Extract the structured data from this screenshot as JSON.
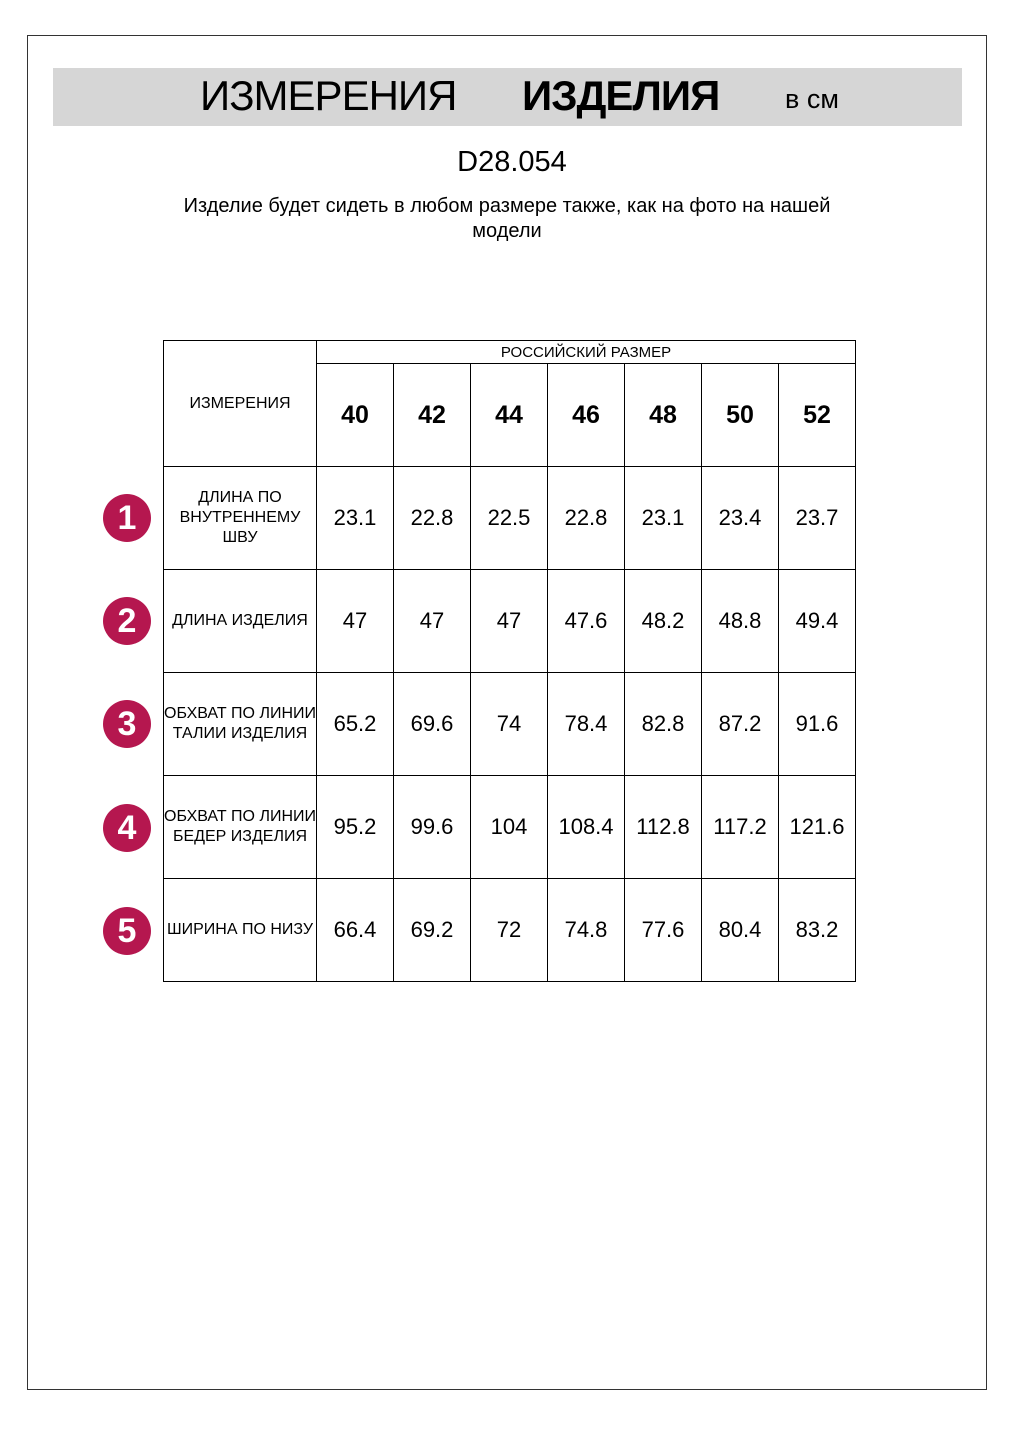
{
  "header": {
    "title_regular": "ИЗМЕРЕНИЯ",
    "title_bold": "ИЗДЕЛИЯ",
    "units": "в см"
  },
  "product_code": "D28.054",
  "note": "Изделие будет сидеть в любом размере также, как на фото на нашей модели",
  "colors": {
    "band": "#d6d6d6",
    "badge": "#b5174f"
  },
  "table": {
    "measure_header": "ИЗМЕРЕНИЯ",
    "size_group_header": "РОССИЙСКИЙ РАЗМЕР",
    "sizes": [
      "40",
      "42",
      "44",
      "46",
      "48",
      "50",
      "52"
    ],
    "rows": [
      {
        "badge": "1",
        "label": "ДЛИНА ПО ВНУТРЕННЕМУ ШВУ",
        "values": [
          "23.1",
          "22.8",
          "22.5",
          "22.8",
          "23.1",
          "23.4",
          "23.7"
        ]
      },
      {
        "badge": "2",
        "label": "ДЛИНА ИЗДЕЛИЯ",
        "values": [
          "47",
          "47",
          "47",
          "47.6",
          "48.2",
          "48.8",
          "49.4"
        ]
      },
      {
        "badge": "3",
        "label": "ОБХВАТ ПО ЛИНИИ ТАЛИИ ИЗДЕЛИЯ",
        "values": [
          "65.2",
          "69.6",
          "74",
          "78.4",
          "82.8",
          "87.2",
          "91.6"
        ]
      },
      {
        "badge": "4",
        "label": "ОБХВАТ ПО ЛИНИИ БЕДЕР ИЗДЕЛИЯ",
        "values": [
          "95.2",
          "99.6",
          "104",
          "108.4",
          "112.8",
          "117.2",
          "121.6"
        ]
      },
      {
        "badge": "5",
        "label": "ШИРИНА ПО НИЗУ",
        "values": [
          "66.4",
          "69.2",
          "72",
          "74.8",
          "77.6",
          "80.4",
          "83.2"
        ]
      }
    ]
  }
}
